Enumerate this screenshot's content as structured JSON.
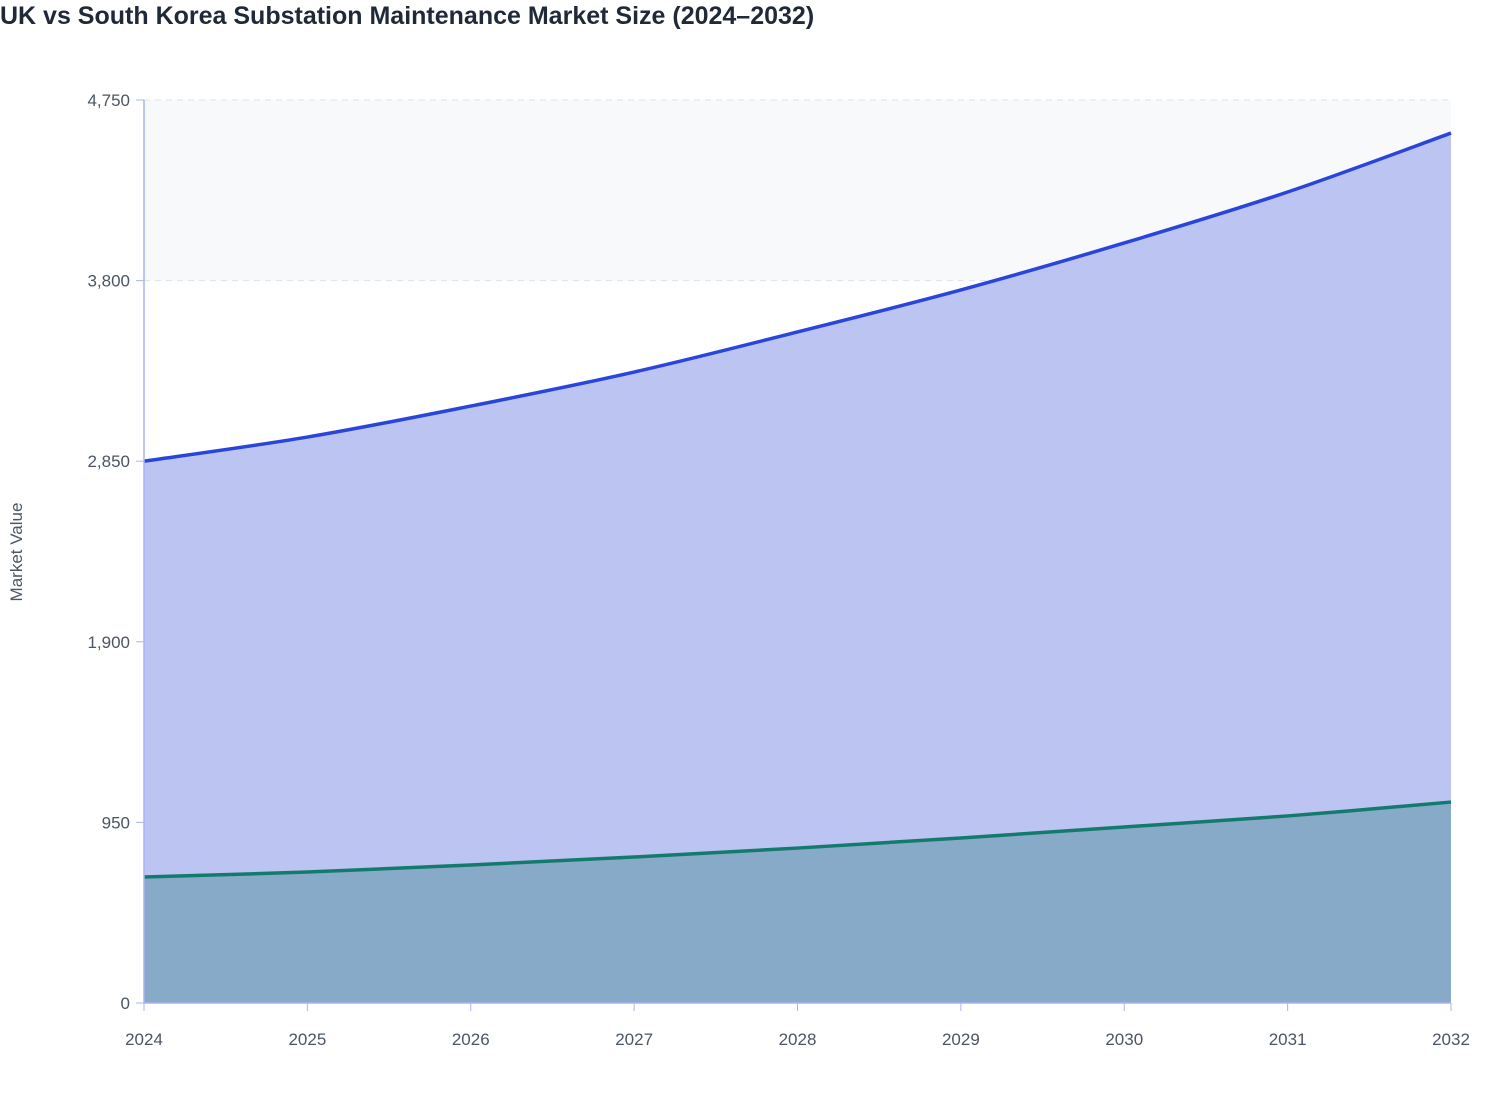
{
  "chart_data": {
    "type": "area",
    "title": "UK vs South Korea Substation Maintenance Market Size (2024–2032)",
    "xlabel": "",
    "ylabel": "Market Value",
    "x": [
      "2024",
      "2025",
      "2026",
      "2027",
      "2028",
      "2029",
      "2030",
      "2031",
      "2032"
    ],
    "ylim": [
      0,
      4750
    ],
    "yticks": [
      "0",
      "950",
      "1,900",
      "2,850",
      "3,800",
      "4,750"
    ],
    "grid": true,
    "legend": "none",
    "series": [
      {
        "values": [
          2850,
          2977,
          3140,
          3319,
          3530,
          3751,
          3998,
          4266,
          4576
        ],
        "color": "#2a45d9",
        "fill": "#bcc4f2"
      },
      {
        "values": [
          663,
          689,
          726,
          768,
          815,
          868,
          926,
          984,
          1057
        ],
        "color": "#157a6e",
        "fill": "#87aac8"
      }
    ]
  }
}
